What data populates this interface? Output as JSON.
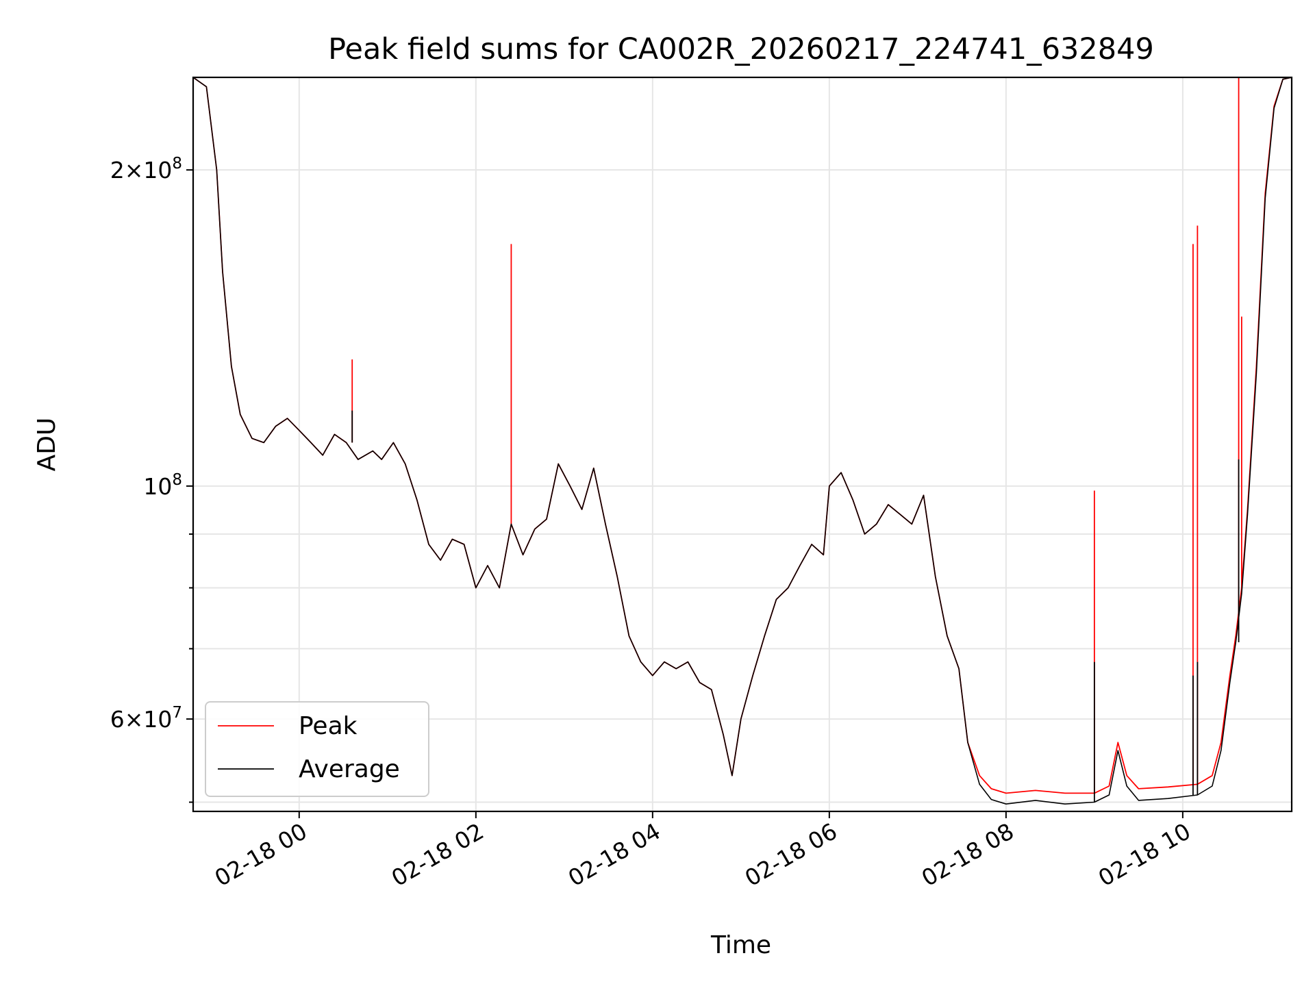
{
  "chart_data": {
    "type": "line",
    "title": "Peak field sums for CA002R_20260217_224741_632849",
    "xlabel": "Time",
    "ylabel": "ADU",
    "x_axis": {
      "type": "time",
      "range": [
        "2026-02-17 22:48",
        "2026-02-18 11:14"
      ],
      "ticks": [
        "2026-02-18 00:00",
        "2026-02-18 02:00",
        "2026-02-18 04:00",
        "2026-02-18 06:00",
        "2026-02-18 08:00",
        "2026-02-18 10:00"
      ],
      "tick_labels": [
        "02-18 00",
        "02-18 02",
        "02-18 04",
        "02-18 06",
        "02-18 08",
        "02-18 10"
      ],
      "tick_rotation_deg": 30
    },
    "y_axis": {
      "scale": "log",
      "range": [
        49000000,
        245000000
      ],
      "major_ticks": [
        60000000,
        100000000,
        200000000
      ],
      "major_tick_labels": [
        {
          "mantissa": "6",
          "exponent": "7"
        },
        {
          "mantissa": "",
          "exponent": "8"
        },
        {
          "mantissa": "2",
          "exponent": "8"
        }
      ],
      "minor_ticks": [
        50000000,
        70000000,
        80000000,
        90000000
      ]
    },
    "grid": true,
    "legend": {
      "placement": "lower-left",
      "entries": [
        "Peak",
        "Average"
      ]
    },
    "series": [
      {
        "name": "Peak",
        "color": "#ff0000",
        "points": [
          [
            "2026-02-17 22:48",
            245000000
          ],
          [
            "2026-02-17 22:57",
            240000000
          ],
          [
            "2026-02-17 23:04",
            200000000
          ],
          [
            "2026-02-17 23:08",
            160000000
          ],
          [
            "2026-02-17 23:14",
            130000000
          ],
          [
            "2026-02-17 23:20",
            117000000
          ],
          [
            "2026-02-17 23:28",
            111000000
          ],
          [
            "2026-02-17 23:36",
            110000000
          ],
          [
            "2026-02-17 23:44",
            114000000
          ],
          [
            "2026-02-17 23:52",
            116000000
          ],
          [
            "2026-02-18 00:00",
            113000000
          ],
          [
            "2026-02-18 00:08",
            110000000
          ],
          [
            "2026-02-18 00:16",
            107000000
          ],
          [
            "2026-02-18 00:24",
            112000000
          ],
          [
            "2026-02-18 00:32",
            110000000
          ],
          [
            "2026-02-18 00:40",
            106000000
          ],
          [
            "2026-02-18 00:50",
            108000000
          ],
          [
            "2026-02-18 00:56",
            106000000
          ],
          [
            "2026-02-18 01:04",
            110000000
          ],
          [
            "2026-02-18 01:12",
            105000000
          ],
          [
            "2026-02-18 01:20",
            97000000
          ],
          [
            "2026-02-18 01:28",
            88000000
          ],
          [
            "2026-02-18 01:36",
            85000000
          ],
          [
            "2026-02-18 01:44",
            89000000
          ],
          [
            "2026-02-18 01:52",
            88000000
          ],
          [
            "2026-02-18 02:00",
            80000000
          ],
          [
            "2026-02-18 02:08",
            84000000
          ],
          [
            "2026-02-18 02:16",
            80000000
          ],
          [
            "2026-02-18 02:24",
            92000000
          ],
          [
            "2026-02-18 02:32",
            86000000
          ],
          [
            "2026-02-18 02:40",
            91000000
          ],
          [
            "2026-02-18 02:48",
            93000000
          ],
          [
            "2026-02-18 02:56",
            105000000
          ],
          [
            "2026-02-18 03:04",
            100000000
          ],
          [
            "2026-02-18 03:12",
            95000000
          ],
          [
            "2026-02-18 03:20",
            104000000
          ],
          [
            "2026-02-18 03:28",
            92000000
          ],
          [
            "2026-02-18 03:36",
            82000000
          ],
          [
            "2026-02-18 03:44",
            72000000
          ],
          [
            "2026-02-18 03:52",
            68000000
          ],
          [
            "2026-02-18 04:00",
            66000000
          ],
          [
            "2026-02-18 04:08",
            68000000
          ],
          [
            "2026-02-18 04:16",
            67000000
          ],
          [
            "2026-02-18 04:24",
            68000000
          ],
          [
            "2026-02-18 04:32",
            65000000
          ],
          [
            "2026-02-18 04:40",
            64000000
          ],
          [
            "2026-02-18 04:48",
            58000000
          ],
          [
            "2026-02-18 04:54",
            53000000
          ],
          [
            "2026-02-18 05:00",
            60000000
          ],
          [
            "2026-02-18 05:08",
            66000000
          ],
          [
            "2026-02-18 05:16",
            72000000
          ],
          [
            "2026-02-18 05:24",
            78000000
          ],
          [
            "2026-02-18 05:32",
            80000000
          ],
          [
            "2026-02-18 05:40",
            84000000
          ],
          [
            "2026-02-18 05:48",
            88000000
          ],
          [
            "2026-02-18 05:56",
            86000000
          ],
          [
            "2026-02-18 06:00",
            100000000
          ],
          [
            "2026-02-18 06:08",
            103000000
          ],
          [
            "2026-02-18 06:16",
            97000000
          ],
          [
            "2026-02-18 06:24",
            90000000
          ],
          [
            "2026-02-18 06:32",
            92000000
          ],
          [
            "2026-02-18 06:40",
            96000000
          ],
          [
            "2026-02-18 06:48",
            94000000
          ],
          [
            "2026-02-18 06:56",
            92000000
          ],
          [
            "2026-02-18 07:04",
            98000000
          ],
          [
            "2026-02-18 07:12",
            82000000
          ],
          [
            "2026-02-18 07:20",
            72000000
          ],
          [
            "2026-02-18 07:28",
            67000000
          ],
          [
            "2026-02-18 07:34",
            57000000
          ],
          [
            "2026-02-18 07:42",
            53000000
          ],
          [
            "2026-02-18 07:50",
            51500000
          ],
          [
            "2026-02-18 08:00",
            51000000
          ],
          [
            "2026-02-18 08:20",
            51300000
          ],
          [
            "2026-02-18 08:40",
            51000000
          ],
          [
            "2026-02-18 09:00",
            51000000
          ],
          [
            "2026-02-18 09:10",
            51800000
          ],
          [
            "2026-02-18 09:16",
            57000000
          ],
          [
            "2026-02-18 09:22",
            53000000
          ],
          [
            "2026-02-18 09:30",
            51500000
          ],
          [
            "2026-02-18 09:50",
            51700000
          ],
          [
            "2026-02-18 10:10",
            52000000
          ],
          [
            "2026-02-18 10:20",
            53000000
          ],
          [
            "2026-02-18 10:26",
            57000000
          ],
          [
            "2026-02-18 10:32",
            66000000
          ],
          [
            "2026-02-18 10:36",
            72000000
          ],
          [
            "2026-02-18 10:40",
            80000000
          ],
          [
            "2026-02-18 10:44",
            95000000
          ],
          [
            "2026-02-18 10:50",
            130000000
          ],
          [
            "2026-02-18 10:56",
            190000000
          ],
          [
            "2026-02-18 11:02",
            230000000
          ],
          [
            "2026-02-18 11:08",
            244000000
          ],
          [
            "2026-02-18 11:14",
            245000000
          ]
        ],
        "spikes": [
          [
            "2026-02-18 00:36",
            132000000
          ],
          [
            "2026-02-18 02:24",
            170000000
          ],
          [
            "2026-02-18 09:00",
            99000000
          ],
          [
            "2026-02-18 10:07",
            170000000
          ],
          [
            "2026-02-18 10:10",
            177000000
          ],
          [
            "2026-02-18 10:38",
            245000000
          ],
          [
            "2026-02-18 10:40",
            145000000
          ]
        ]
      },
      {
        "name": "Average",
        "color": "#000000",
        "points": [
          [
            "2026-02-17 22:48",
            245000000
          ],
          [
            "2026-02-17 22:57",
            240000000
          ],
          [
            "2026-02-17 23:04",
            200000000
          ],
          [
            "2026-02-17 23:08",
            160000000
          ],
          [
            "2026-02-17 23:14",
            130000000
          ],
          [
            "2026-02-17 23:20",
            117000000
          ],
          [
            "2026-02-17 23:28",
            111000000
          ],
          [
            "2026-02-17 23:36",
            110000000
          ],
          [
            "2026-02-17 23:44",
            114000000
          ],
          [
            "2026-02-17 23:52",
            116000000
          ],
          [
            "2026-02-18 00:00",
            113000000
          ],
          [
            "2026-02-18 00:08",
            110000000
          ],
          [
            "2026-02-18 00:16",
            107000000
          ],
          [
            "2026-02-18 00:24",
            112000000
          ],
          [
            "2026-02-18 00:32",
            110000000
          ],
          [
            "2026-02-18 00:40",
            106000000
          ],
          [
            "2026-02-18 00:50",
            108000000
          ],
          [
            "2026-02-18 00:56",
            106000000
          ],
          [
            "2026-02-18 01:04",
            110000000
          ],
          [
            "2026-02-18 01:12",
            105000000
          ],
          [
            "2026-02-18 01:20",
            97000000
          ],
          [
            "2026-02-18 01:28",
            88000000
          ],
          [
            "2026-02-18 01:36",
            85000000
          ],
          [
            "2026-02-18 01:44",
            89000000
          ],
          [
            "2026-02-18 01:52",
            88000000
          ],
          [
            "2026-02-18 02:00",
            80000000
          ],
          [
            "2026-02-18 02:08",
            84000000
          ],
          [
            "2026-02-18 02:16",
            80000000
          ],
          [
            "2026-02-18 02:24",
            92000000
          ],
          [
            "2026-02-18 02:32",
            86000000
          ],
          [
            "2026-02-18 02:40",
            91000000
          ],
          [
            "2026-02-18 02:48",
            93000000
          ],
          [
            "2026-02-18 02:56",
            105000000
          ],
          [
            "2026-02-18 03:04",
            100000000
          ],
          [
            "2026-02-18 03:12",
            95000000
          ],
          [
            "2026-02-18 03:20",
            104000000
          ],
          [
            "2026-02-18 03:28",
            92000000
          ],
          [
            "2026-02-18 03:36",
            82000000
          ],
          [
            "2026-02-18 03:44",
            72000000
          ],
          [
            "2026-02-18 03:52",
            68000000
          ],
          [
            "2026-02-18 04:00",
            66000000
          ],
          [
            "2026-02-18 04:08",
            68000000
          ],
          [
            "2026-02-18 04:16",
            67000000
          ],
          [
            "2026-02-18 04:24",
            68000000
          ],
          [
            "2026-02-18 04:32",
            65000000
          ],
          [
            "2026-02-18 04:40",
            64000000
          ],
          [
            "2026-02-18 04:48",
            58000000
          ],
          [
            "2026-02-18 04:54",
            53000000
          ],
          [
            "2026-02-18 05:00",
            60000000
          ],
          [
            "2026-02-18 05:08",
            66000000
          ],
          [
            "2026-02-18 05:16",
            72000000
          ],
          [
            "2026-02-18 05:24",
            78000000
          ],
          [
            "2026-02-18 05:32",
            80000000
          ],
          [
            "2026-02-18 05:40",
            84000000
          ],
          [
            "2026-02-18 05:48",
            88000000
          ],
          [
            "2026-02-18 05:56",
            86000000
          ],
          [
            "2026-02-18 06:00",
            100000000
          ],
          [
            "2026-02-18 06:08",
            103000000
          ],
          [
            "2026-02-18 06:16",
            97000000
          ],
          [
            "2026-02-18 06:24",
            90000000
          ],
          [
            "2026-02-18 06:32",
            92000000
          ],
          [
            "2026-02-18 06:40",
            96000000
          ],
          [
            "2026-02-18 06:48",
            94000000
          ],
          [
            "2026-02-18 06:56",
            92000000
          ],
          [
            "2026-02-18 07:04",
            98000000
          ],
          [
            "2026-02-18 07:12",
            82000000
          ],
          [
            "2026-02-18 07:20",
            72000000
          ],
          [
            "2026-02-18 07:28",
            67000000
          ],
          [
            "2026-02-18 07:34",
            57000000
          ],
          [
            "2026-02-18 07:42",
            52000000
          ],
          [
            "2026-02-18 07:50",
            50300000
          ],
          [
            "2026-02-18 08:00",
            49800000
          ],
          [
            "2026-02-18 08:20",
            50200000
          ],
          [
            "2026-02-18 08:40",
            49800000
          ],
          [
            "2026-02-18 09:00",
            50000000
          ],
          [
            "2026-02-18 09:10",
            50800000
          ],
          [
            "2026-02-18 09:16",
            56000000
          ],
          [
            "2026-02-18 09:22",
            51800000
          ],
          [
            "2026-02-18 09:30",
            50200000
          ],
          [
            "2026-02-18 09:50",
            50400000
          ],
          [
            "2026-02-18 10:10",
            50800000
          ],
          [
            "2026-02-18 10:20",
            51800000
          ],
          [
            "2026-02-18 10:26",
            56000000
          ],
          [
            "2026-02-18 10:32",
            65000000
          ],
          [
            "2026-02-18 10:36",
            71000000
          ],
          [
            "2026-02-18 10:40",
            79000000
          ],
          [
            "2026-02-18 10:44",
            94000000
          ],
          [
            "2026-02-18 10:50",
            128000000
          ],
          [
            "2026-02-18 10:56",
            188000000
          ],
          [
            "2026-02-18 11:02",
            229000000
          ],
          [
            "2026-02-18 11:08",
            244000000
          ],
          [
            "2026-02-18 11:14",
            245000000
          ]
        ],
        "spikes": [
          [
            "2026-02-18 00:36",
            118000000
          ],
          [
            "2026-02-18 09:00",
            68000000
          ],
          [
            "2026-02-18 10:07",
            66000000
          ],
          [
            "2026-02-18 10:10",
            68000000
          ],
          [
            "2026-02-18 10:38",
            106000000
          ]
        ]
      }
    ]
  }
}
